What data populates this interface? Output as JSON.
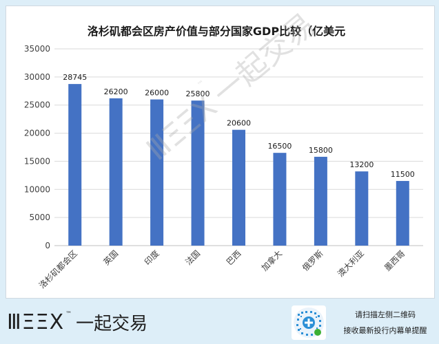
{
  "chart_data": {
    "type": "bar",
    "title": "洛杉矶都会区房产价值与部分国家GDP比较（亿美元",
    "categories": [
      "洛杉矶都会区",
      "英国",
      "印度",
      "法国",
      "巴西",
      "加拿大",
      "俄罗斯",
      "澳大利亚",
      "墨西哥"
    ],
    "values": [
      28745,
      26200,
      26000,
      25800,
      20600,
      16500,
      15800,
      13200,
      11500
    ],
    "data_labels": [
      "28745",
      "26200",
      "26000",
      "25800",
      "20600",
      "16500",
      "15800",
      "13200",
      "11500"
    ],
    "ylim": [
      0,
      35000
    ],
    "yticks": [
      "0",
      "5000",
      "10000",
      "15000",
      "20000",
      "25000",
      "30000",
      "35000"
    ],
    "xlabel": "",
    "ylabel": "",
    "grid": true,
    "bar_color": "#4472c4"
  },
  "watermark": {
    "mark": "ⅢΞΞX",
    "tm": "™",
    "brand": "一起交易"
  },
  "footer": {
    "logo_mark": "ⅢΞΞX",
    "logo_tm": "™",
    "logo_brand": "一起交易",
    "promo_line1": "请扫描左侧二维码",
    "promo_line2": "接收最新投行内幕单提醒"
  }
}
